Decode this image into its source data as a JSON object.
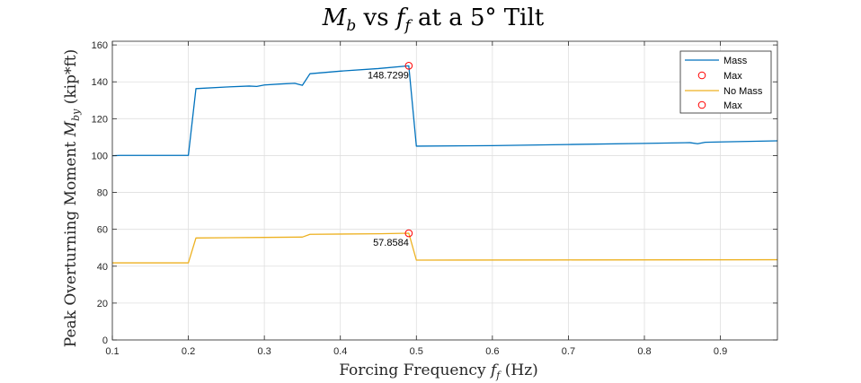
{
  "chart_data": {
    "type": "line",
    "title": "M_b vs f_f at a 5° Tilt",
    "title_parts": {
      "m": "M",
      "m_sub": "b",
      "vs": " vs ",
      "f": "f",
      "f_sub": "f",
      "rest": " at a 5° Tilt"
    },
    "xlabel": "Forcing Frequency f_f (Hz)",
    "xlabel_parts": {
      "pre": "Forcing Frequency ",
      "f": "f",
      "f_sub": "f",
      "post": " (Hz)"
    },
    "ylabel": "Peak Overturning Moment M_by (kip*ft)",
    "ylabel_parts": {
      "pre": "Peak Overturning Moment ",
      "m": "M",
      "m_sub": "by",
      "post": " (kip*ft)"
    },
    "xlim": [
      0.1,
      0.975
    ],
    "ylim": [
      0,
      162
    ],
    "x_ticks": [
      0.1,
      0.2,
      0.3,
      0.4,
      0.5,
      0.6,
      0.7,
      0.8,
      0.9
    ],
    "x_tick_labels": [
      "0.1",
      "0.2",
      "0.3",
      "0.4",
      "0.5",
      "0.6",
      "0.7",
      "0.8",
      "0.9"
    ],
    "y_ticks": [
      0,
      20,
      40,
      60,
      80,
      100,
      120,
      140,
      160
    ],
    "y_tick_labels": [
      "0",
      "20",
      "40",
      "60",
      "80",
      "100",
      "120",
      "140",
      "160"
    ],
    "grid": true,
    "legend_position": "top-right",
    "series": [
      {
        "name": "Mass",
        "color": "#0072BD",
        "x": [
          0.1,
          0.11,
          0.2,
          0.21,
          0.25,
          0.28,
          0.29,
          0.3,
          0.32,
          0.34,
          0.35,
          0.36,
          0.4,
          0.45,
          0.49,
          0.5,
          0.6,
          0.7,
          0.8,
          0.86,
          0.87,
          0.88,
          0.9,
          0.975
        ],
        "y": [
          99.9,
          100.1,
          100.1,
          136.3,
          137.2,
          137.7,
          137.5,
          138.3,
          138.8,
          139.2,
          138.1,
          144.4,
          145.8,
          147.2,
          148.7,
          105.1,
          105.4,
          106.0,
          106.6,
          107.0,
          106.4,
          107.2,
          107.4,
          108.0
        ]
      },
      {
        "name": "No Mass",
        "color": "#EDB120",
        "x": [
          0.1,
          0.2,
          0.21,
          0.3,
          0.35,
          0.36,
          0.45,
          0.49,
          0.5,
          0.7,
          0.975
        ],
        "y": [
          41.8,
          41.8,
          55.3,
          55.6,
          55.8,
          57.3,
          57.6,
          57.9,
          43.3,
          43.4,
          43.5
        ]
      }
    ],
    "markers": [
      {
        "name": "Max",
        "x": 0.49,
        "y": 148.7299,
        "label": "148.7299",
        "color": "#FF0000"
      },
      {
        "name": "Max",
        "x": 0.49,
        "y": 57.8584,
        "label": "57.8584",
        "color": "#FF0000"
      }
    ],
    "legend": [
      {
        "label": "Mass",
        "kind": "line",
        "color": "#0072BD"
      },
      {
        "label": "Max",
        "kind": "marker",
        "color": "#FF0000"
      },
      {
        "label": "No Mass",
        "kind": "line",
        "color": "#EDB120"
      },
      {
        "label": "Max",
        "kind": "marker",
        "color": "#FF0000"
      }
    ]
  }
}
